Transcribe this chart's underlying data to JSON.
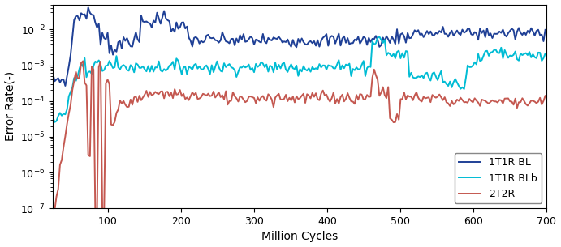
{
  "xlabel": "Million Cycles",
  "ylabel": "Error Rate(-)",
  "xlim": [
    25,
    700
  ],
  "ylim": [
    1e-07,
    0.05
  ],
  "legend": [
    "1T1R BL",
    "1T1R BLb",
    "2T2R"
  ],
  "colors": [
    "#1f4096",
    "#00bcd4",
    "#c45850"
  ],
  "background_color": "#ffffff",
  "linewidth": 1.4
}
